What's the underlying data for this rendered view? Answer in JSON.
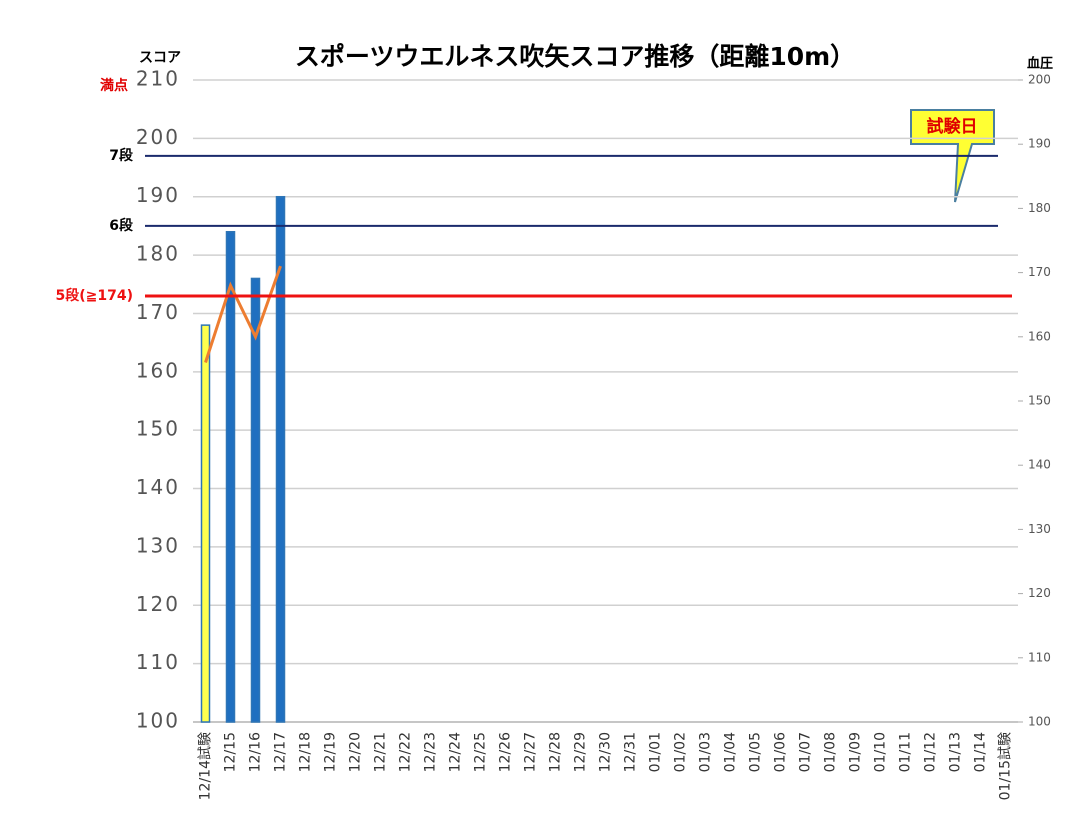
{
  "chart_data": {
    "type": "bar",
    "title": "スポーツウエルネス吹矢スコア推移（距離10m）",
    "y_label": "スコア",
    "y2_label": "血圧",
    "categories": [
      "12/14試験",
      "12/15",
      "12/16",
      "12/17",
      "12/18",
      "12/19",
      "12/20",
      "12/21",
      "12/22",
      "12/23",
      "12/24",
      "12/25",
      "12/26",
      "12/27",
      "12/28",
      "12/29",
      "12/30",
      "12/31",
      "01/01",
      "01/02",
      "01/03",
      "01/04",
      "01/05",
      "01/06",
      "01/07",
      "01/08",
      "01/09",
      "01/10",
      "01/11",
      "01/12",
      "01/13",
      "01/14",
      "01/15試験"
    ],
    "series": [
      {
        "type": "bar",
        "axis": "y",
        "border": "#2e75b6",
        "colors": [
          "#ffff4d",
          "#1f6fc0",
          "#1f6fc0",
          "#1f6fc0",
          "#1f6fc0",
          "#1f6fc0",
          "#1f6fc0",
          "#1f6fc0",
          "#1f6fc0",
          "#1f6fc0",
          "#1f6fc0",
          "#1f6fc0",
          "#1f6fc0",
          "#1f6fc0",
          "#1f6fc0",
          "#1f6fc0",
          "#1f6fc0",
          "#1f6fc0",
          "#1f6fc0",
          "#1f6fc0",
          "#1f6fc0",
          "#1f6fc0",
          "#1f6fc0",
          "#1f6fc0",
          "#1f6fc0",
          "#1f6fc0",
          "#1f6fc0",
          "#1f6fc0",
          "#1f6fc0",
          "#1f6fc0",
          "#1f6fc0",
          "#1f6fc0",
          "#ffff4d"
        ],
        "values": [
          168,
          184,
          176,
          190,
          null,
          null,
          null,
          null,
          null,
          null,
          null,
          null,
          null,
          null,
          null,
          null,
          null,
          null,
          null,
          null,
          null,
          null,
          null,
          null,
          null,
          null,
          null,
          null,
          null,
          null,
          null,
          null,
          null
        ]
      },
      {
        "type": "line",
        "axis": "y2",
        "color": "#ed7d31",
        "values": [
          156,
          168,
          160,
          171,
          null,
          null,
          null,
          null,
          null,
          null,
          null,
          null,
          null,
          null,
          null,
          null,
          null,
          null,
          null,
          null,
          null,
          null,
          null,
          null,
          null,
          null,
          null,
          null,
          null,
          null,
          null,
          null,
          null
        ]
      }
    ],
    "ylim": [
      100,
      210
    ],
    "yticks": [
      100,
      110,
      120,
      130,
      140,
      150,
      160,
      170,
      180,
      190,
      200,
      210
    ],
    "y2lim": [
      100,
      200
    ],
    "y2ticks": [
      100,
      110,
      120,
      130,
      140,
      150,
      160,
      170,
      180,
      190,
      200
    ],
    "grid": true,
    "max_label": {
      "label": "満点",
      "value": 210,
      "color": "#e00000"
    },
    "reference_lines": [
      {
        "label": "7段",
        "value": 197,
        "color": "#1a2a6c"
      },
      {
        "label": "6段",
        "value": 185,
        "color": "#1a2a6c"
      },
      {
        "label": "5段(≧174)",
        "value": 173,
        "color": "#ee1111"
      }
    ],
    "callout": "試験日"
  }
}
